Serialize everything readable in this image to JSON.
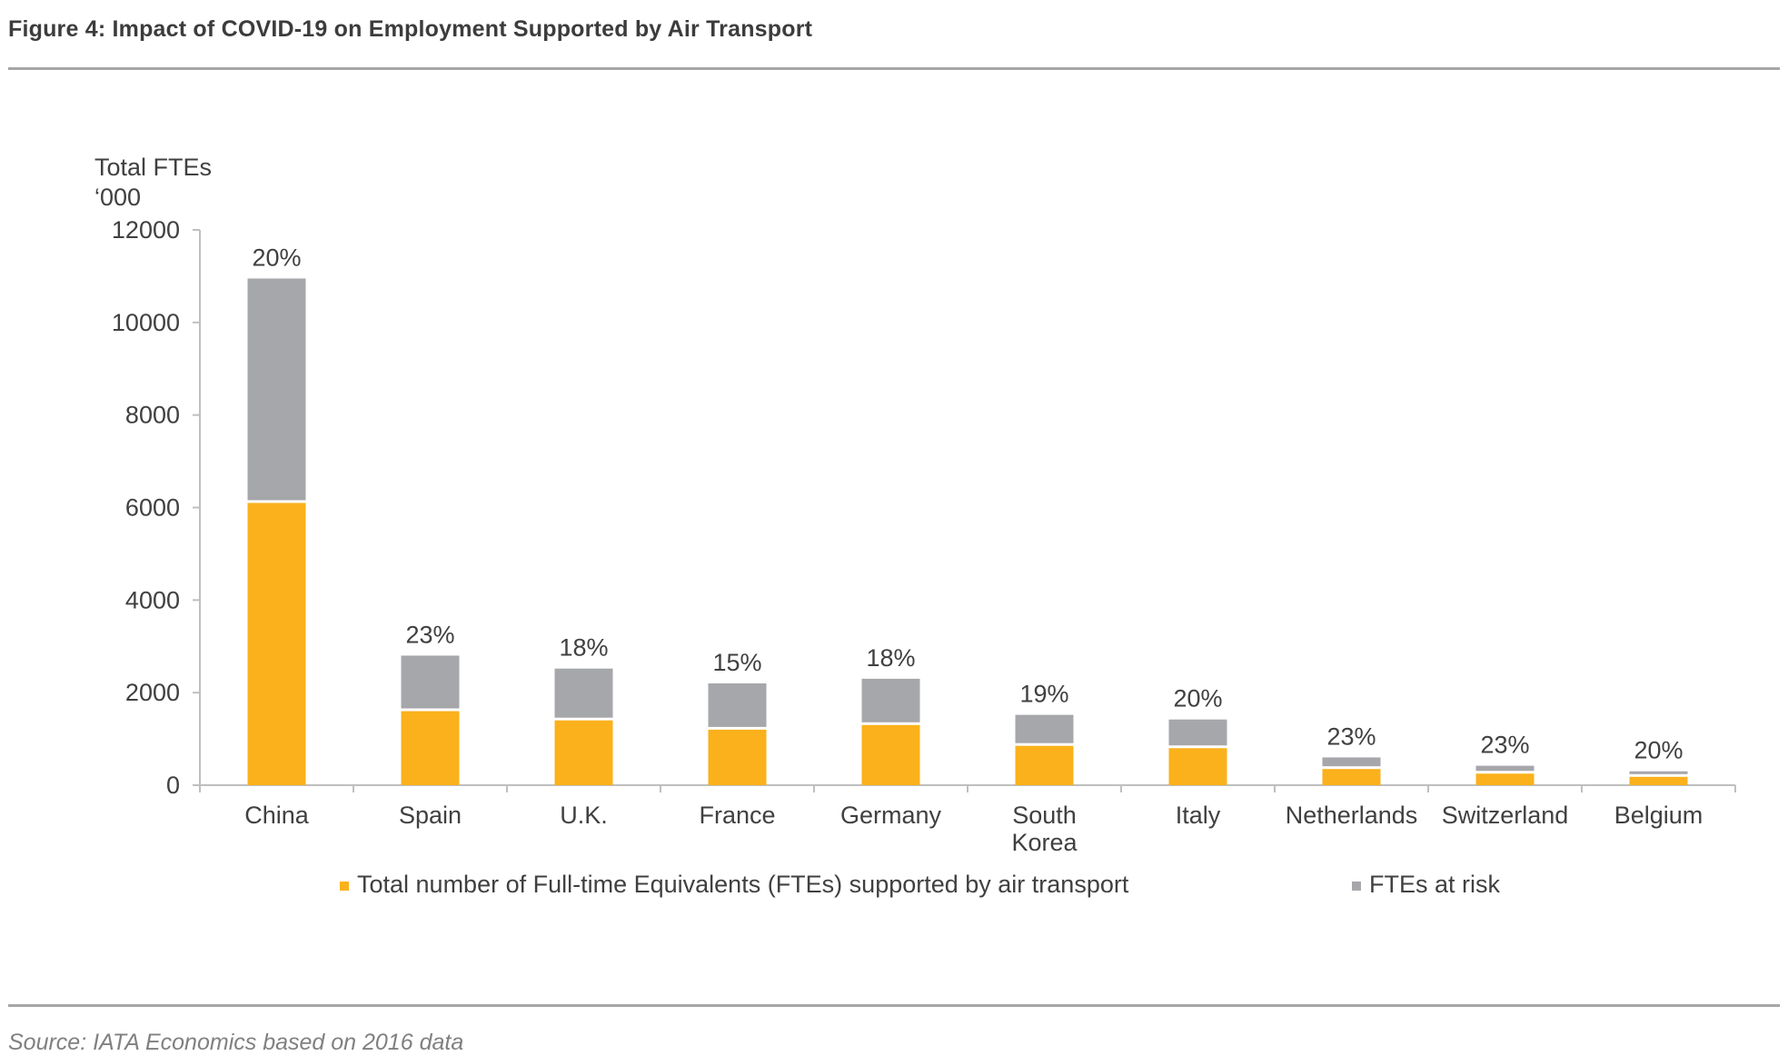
{
  "figure": {
    "title": "Figure 4: Impact of COVID-19 on Employment Supported by Air Transport",
    "source": "Source: IATA Economics based on 2016 data"
  },
  "colors": {
    "supported": "#FAB11B",
    "at_risk": "#A6A7AB",
    "rule": "#A6A6A6"
  },
  "chart_data": {
    "type": "bar",
    "stacked": true,
    "ylabel_lines": [
      "Total FTEs",
      "‘000"
    ],
    "ylim": [
      0,
      12000
    ],
    "yticks": [
      0,
      2000,
      4000,
      6000,
      8000,
      10000,
      12000
    ],
    "grid": false,
    "legend_position": "bottom",
    "categories": [
      [
        "China"
      ],
      [
        "Spain"
      ],
      [
        "U.K."
      ],
      [
        "France"
      ],
      [
        "Germany"
      ],
      [
        "South",
        "Korea"
      ],
      [
        "Italy"
      ],
      [
        "Netherlands"
      ],
      [
        "Switzerland"
      ],
      [
        "Belgium"
      ]
    ],
    "series": [
      {
        "name": "Total number of Full-time Equivalents (FTEs) supported by air transport",
        "values": [
          6100,
          1600,
          1400,
          1200,
          1300,
          850,
          800,
          350,
          250,
          180
        ]
      },
      {
        "name": "FTEs at risk",
        "values": [
          4850,
          1200,
          1120,
          1000,
          1000,
          670,
          620,
          250,
          170,
          120
        ]
      }
    ],
    "data_labels": [
      "20%",
      "23%",
      "18%",
      "15%",
      "18%",
      "19%",
      "20%",
      "23%",
      "23%",
      "20%"
    ]
  }
}
